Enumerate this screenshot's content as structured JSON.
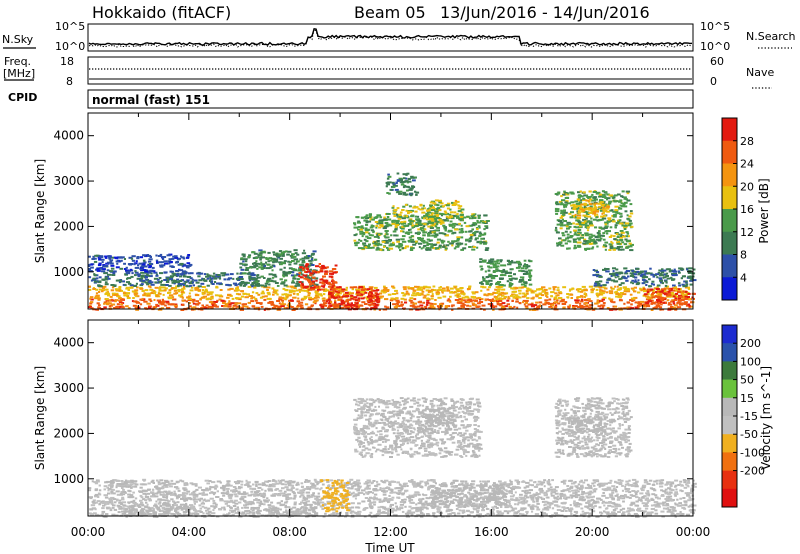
{
  "header": {
    "station": "Hokkaido (fitACF)",
    "beam": "Beam 05",
    "date_range": "13/Jun/2016 - 14/Jun/2016"
  },
  "panels": {
    "nsky_label": "N.Sky",
    "nsky_ticks": [
      "10^5",
      "10^0"
    ],
    "nsearch_label": "N.Search",
    "nsearch_ticks": [
      "10^5",
      "10^0"
    ],
    "freq_label": "Freq.",
    "freq_unit": "[MHz]",
    "freq_ticks": [
      "18",
      "8"
    ],
    "nave_label": "Nave",
    "nave_ticks": [
      "60",
      "0"
    ],
    "cpid_label": "CPID",
    "cpid_value": "normal (fast) 151"
  },
  "colors": {
    "power_scale": [
      "#0b1ad6",
      "#2d50a8",
      "#3c7a52",
      "#4a9a4a",
      "#e8c010",
      "#f49410",
      "#ef5a10",
      "#e31a10"
    ],
    "velocity_scale": [
      "#1c2bd0",
      "#2a52ab",
      "#3c7a3c",
      "#6ac23c",
      "#b8b8b8",
      "#c0c0c0",
      "#f0b020",
      "#f07010",
      "#e83010",
      "#e01010"
    ]
  },
  "chart_data": [
    {
      "type": "heatmap",
      "name": "Power",
      "xlabel": "",
      "ylabel": "Slant Range [km]",
      "xlim": [
        0,
        24
      ],
      "ylim": [
        180,
        4500
      ],
      "yticks": [
        "1000",
        "2000",
        "3000",
        "4000"
      ],
      "colorbar": {
        "label": "Power [dB]",
        "ticks": [
          "28",
          "24",
          "20",
          "16",
          "12",
          "8",
          "4"
        ],
        "range": [
          0,
          30
        ]
      },
      "regions": [
        {
          "t0": 0,
          "t1": 24,
          "r0": 180,
          "r1": 420,
          "level": 24
        },
        {
          "t0": 0,
          "t1": 24,
          "r0": 420,
          "r1": 700,
          "level": 18
        },
        {
          "t0": 0,
          "t1": 6.5,
          "r0": 700,
          "r1": 1000,
          "level": 8
        },
        {
          "t0": 0,
          "t1": 4,
          "r0": 1000,
          "r1": 1400,
          "level": 5
        },
        {
          "t0": 6,
          "t1": 9,
          "r0": 700,
          "r1": 1500,
          "level": 10
        },
        {
          "t0": 8.3,
          "t1": 9.8,
          "r0": 600,
          "r1": 1200,
          "level": 26
        },
        {
          "t0": 9.5,
          "t1": 11.5,
          "r0": 180,
          "r1": 700,
          "level": 27
        },
        {
          "t0": 10.5,
          "t1": 15.8,
          "r0": 1500,
          "r1": 2300,
          "level": 13
        },
        {
          "t0": 12,
          "t1": 14,
          "r0": 2000,
          "r1": 2500,
          "level": 15
        },
        {
          "t0": 11.8,
          "t1": 13,
          "r0": 2700,
          "r1": 3200,
          "level": 9
        },
        {
          "t0": 13.5,
          "t1": 14.8,
          "r0": 2200,
          "r1": 2600,
          "level": 16
        },
        {
          "t0": 15.5,
          "t1": 17.5,
          "r0": 700,
          "r1": 1300,
          "level": 12
        },
        {
          "t0": 18.5,
          "t1": 21.5,
          "r0": 1500,
          "r1": 2800,
          "level": 13
        },
        {
          "t0": 19.2,
          "t1": 20.6,
          "r0": 2200,
          "r1": 2600,
          "level": 18
        },
        {
          "t0": 22,
          "t1": 24,
          "r0": 300,
          "r1": 650,
          "level": 26
        },
        {
          "t0": 20,
          "t1": 24,
          "r0": 700,
          "r1": 1100,
          "level": 8
        }
      ]
    },
    {
      "type": "heatmap",
      "name": "Velocity",
      "xlabel": "Time UT",
      "ylabel": "Slant Range [km]",
      "xlim": [
        0,
        24
      ],
      "ylim": [
        180,
        4500
      ],
      "xticks": [
        "00:00",
        "04:00",
        "08:00",
        "12:00",
        "16:00",
        "20:00",
        "00:00"
      ],
      "yticks": [
        "1000",
        "2000",
        "3000",
        "4000"
      ],
      "colorbar": {
        "label": "Velocity [m s^-1]",
        "ticks": [
          "200",
          "100",
          "50",
          "15",
          "-15",
          "-50",
          "-100",
          "-200"
        ],
        "range": [
          -250,
          250
        ]
      },
      "regions": [
        {
          "t0": 0,
          "t1": 24,
          "r0": 180,
          "r1": 1000,
          "level": 0
        },
        {
          "t0": 1,
          "t1": 4,
          "r0": 200,
          "r1": 450,
          "level": 40
        },
        {
          "t0": 6,
          "t1": 9,
          "r0": 200,
          "r1": 400,
          "level": 45
        },
        {
          "t0": 9.2,
          "t1": 10.3,
          "r0": 300,
          "r1": 1000,
          "level": -60
        },
        {
          "t0": 10.5,
          "t1": 15.5,
          "r0": 1500,
          "r1": 2800,
          "level": 0
        },
        {
          "t0": 13,
          "t1": 14.5,
          "r0": 2000,
          "r1": 2600,
          "level": 35
        },
        {
          "t0": 13.5,
          "t1": 16.5,
          "r0": 400,
          "r1": 900,
          "level": 40
        },
        {
          "t0": 18.5,
          "t1": 21.5,
          "r0": 1500,
          "r1": 2800,
          "level": 0
        },
        {
          "t0": 19,
          "t1": 20.5,
          "r0": 2000,
          "r1": 2400,
          "level": 35
        }
      ]
    }
  ]
}
